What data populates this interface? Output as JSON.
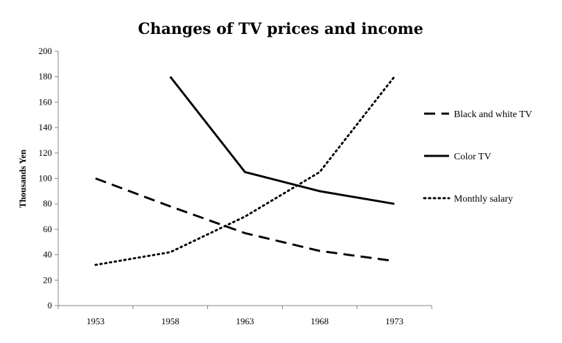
{
  "chart_data": {
    "type": "line",
    "title": "Changes of TV prices and income",
    "xlabel": "",
    "ylabel": "Thousands Yen",
    "categories": [
      "1953",
      "1958",
      "1963",
      "1968",
      "1973"
    ],
    "ylim": [
      0,
      200
    ],
    "yticks": [
      0,
      20,
      40,
      60,
      80,
      100,
      120,
      140,
      160,
      180,
      200
    ],
    "grid": false,
    "legend": "right",
    "series": [
      {
        "name": "Black and white TV",
        "style": "dashed",
        "color": "#000000",
        "values": [
          100,
          78,
          57,
          43,
          35
        ]
      },
      {
        "name": "Color TV",
        "style": "solid",
        "color": "#000000",
        "values": [
          null,
          180,
          105,
          90,
          80
        ]
      },
      {
        "name": "Monthly salary",
        "style": "dotted",
        "color": "#000000",
        "values": [
          32,
          42,
          70,
          105,
          180
        ]
      }
    ]
  }
}
